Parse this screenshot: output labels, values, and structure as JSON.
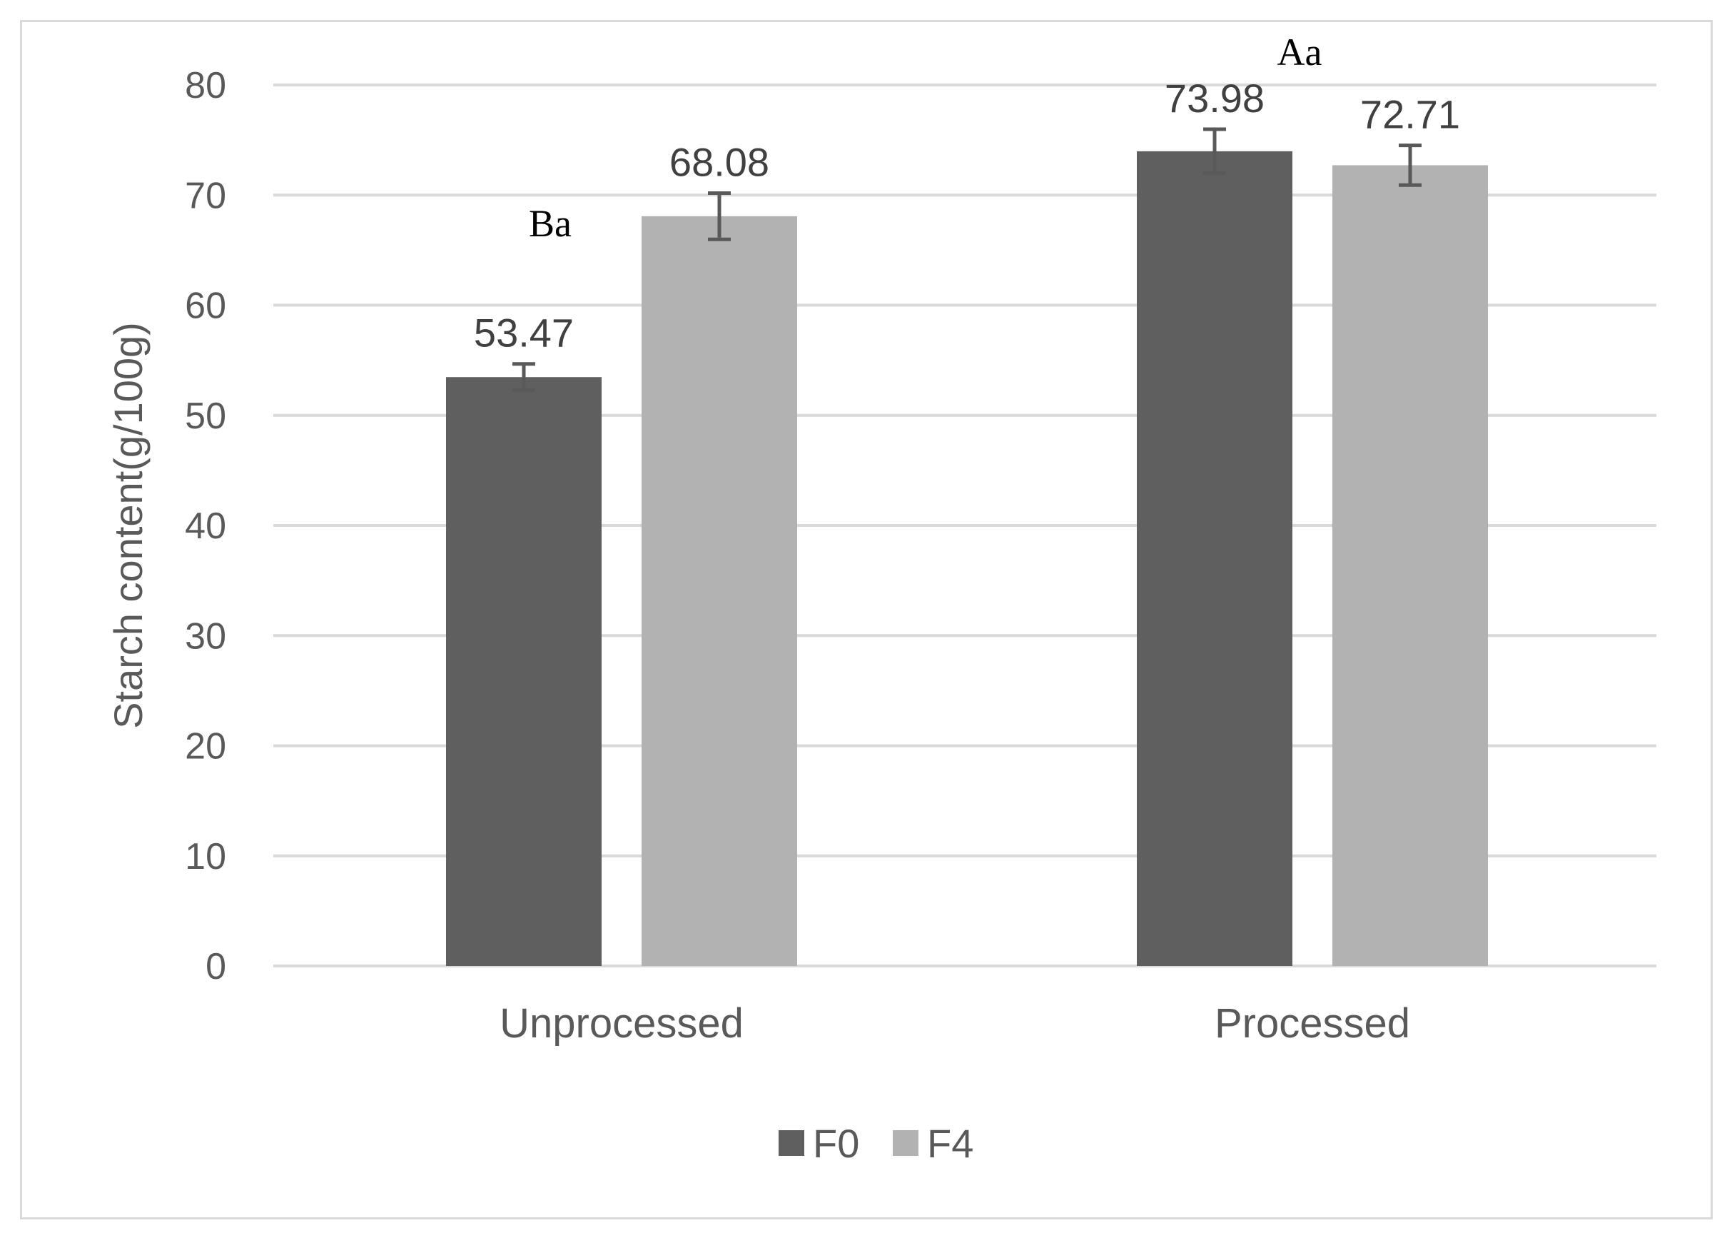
{
  "chart_data": {
    "type": "bar",
    "title": "",
    "xlabel": "",
    "ylabel": "Starch content(g/100g)",
    "ylim": [
      0,
      80
    ],
    "yticks": [
      0,
      10,
      20,
      30,
      40,
      50,
      60,
      70,
      80
    ],
    "categories": [
      "Unprocessed",
      "Processed"
    ],
    "series": [
      {
        "name": "F0",
        "color": "#5f5f5f",
        "values": [
          53.47,
          73.98
        ],
        "labels": [
          "53.47",
          "73.98"
        ],
        "error": [
          1.2,
          2.0
        ]
      },
      {
        "name": "F4",
        "color": "#b2b2b2",
        "values": [
          68.08,
          72.71
        ],
        "labels": [
          "68.08",
          "72.71"
        ],
        "error": [
          2.1,
          1.8
        ]
      }
    ],
    "annotations": [
      {
        "text": "Ba",
        "category": "Unprocessed"
      },
      {
        "text": "Aa",
        "category": "Processed"
      }
    ],
    "grid": true,
    "legend": "bottom-center",
    "error_bar_color": "#595959",
    "gridline_color": "#d9d9d9"
  }
}
